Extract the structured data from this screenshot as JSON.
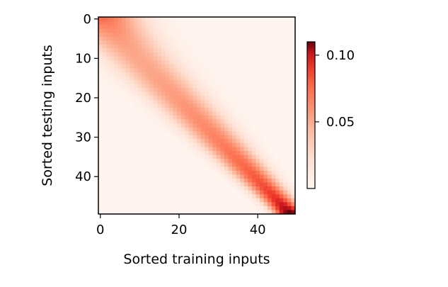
{
  "chart_data": {
    "type": "heatmap",
    "title": "",
    "xlabel": "Sorted training inputs",
    "ylabel": "Sorted testing inputs",
    "n_cols": 50,
    "n_rows": 50,
    "x_ticks": [
      "0",
      "20",
      "40"
    ],
    "x_tick_values": [
      0,
      20,
      40
    ],
    "y_ticks": [
      "0",
      "10",
      "20",
      "30",
      "40"
    ],
    "y_tick_values": [
      0,
      10,
      20,
      30,
      40
    ],
    "colorbar": {
      "ticks": [
        "0.05",
        "0.10"
      ],
      "tick_values": [
        0.05,
        0.1
      ],
      "range": [
        0.0,
        0.11
      ],
      "colormap": "Reds"
    },
    "pattern": "diagonal band from top-left to bottom-right; band narrows and intensifies toward bottom-right; peak value ~0.11 at bottom-right corner; top-left corner ~0.06",
    "grid": false,
    "legend": "colorbar-right"
  },
  "colors": {
    "low": "#fff5f0",
    "mid": "#fb6a4a",
    "high": "#67000d"
  }
}
